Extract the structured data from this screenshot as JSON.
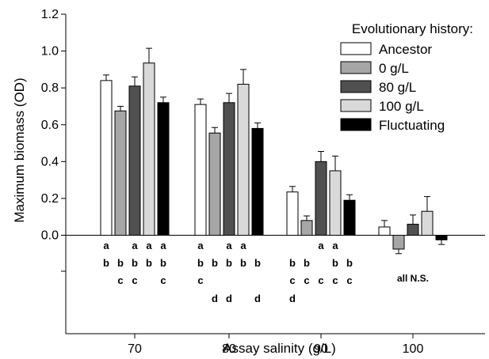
{
  "chart_data": {
    "type": "bar",
    "xlabel": "Assay salinity (g/L)",
    "ylabel": "Maximum biomass (OD)",
    "ylim": [
      0,
      1.2
    ],
    "yticks": [
      "0.0",
      "0.2",
      "0.4",
      "0.6",
      "0.8",
      "1.0",
      "1.2"
    ],
    "categories": [
      "70",
      "80",
      "90",
      "100"
    ],
    "legend": {
      "title": "Evolutionary history:",
      "position": "top-right"
    },
    "series": [
      {
        "name": "Ancestor",
        "color": "#ffffff",
        "values": [
          0.84,
          0.71,
          0.235,
          0.045
        ],
        "errors": [
          0.03,
          0.03,
          0.03,
          0.035
        ]
      },
      {
        "name": "0 g/L",
        "color": "#a6a6a6",
        "values": [
          0.675,
          0.555,
          0.08,
          -0.075
        ],
        "errors": [
          0.025,
          0.03,
          0.025,
          0.025
        ]
      },
      {
        "name": "80 g/L",
        "color": "#505050",
        "values": [
          0.81,
          0.72,
          0.4,
          0.06
        ],
        "errors": [
          0.05,
          0.05,
          0.055,
          0.05
        ]
      },
      {
        "name": "100 g/L",
        "color": "#d9d9d9",
        "values": [
          0.935,
          0.82,
          0.35,
          0.13
        ],
        "errors": [
          0.08,
          0.08,
          0.08,
          0.08
        ]
      },
      {
        "name": "Fluctuating",
        "color": "#000000",
        "values": [
          0.72,
          0.58,
          0.19,
          -0.025
        ],
        "errors": [
          0.03,
          0.03,
          0.03,
          0.025
        ]
      }
    ],
    "significance": [
      [
        [
          "a",
          "b"
        ],
        [
          "b",
          "c"
        ],
        [
          "a",
          "b",
          "c"
        ],
        [
          "a",
          "b"
        ],
        [
          "a",
          "b",
          "c"
        ]
      ],
      [
        [
          "a",
          "b",
          "c"
        ],
        [
          "b",
          "d"
        ],
        [
          "a",
          "b",
          "d"
        ],
        [
          "a",
          "b"
        ],
        [
          "b",
          "d"
        ]
      ],
      [
        [
          "b",
          "c",
          "d"
        ],
        [
          "b",
          "c"
        ],
        [
          "a",
          "c"
        ],
        [
          "a",
          "b",
          "c"
        ],
        [
          "b",
          "c"
        ]
      ],
      [
        [],
        [],
        [],
        [],
        []
      ]
    ],
    "significance_note": "all N.S."
  }
}
